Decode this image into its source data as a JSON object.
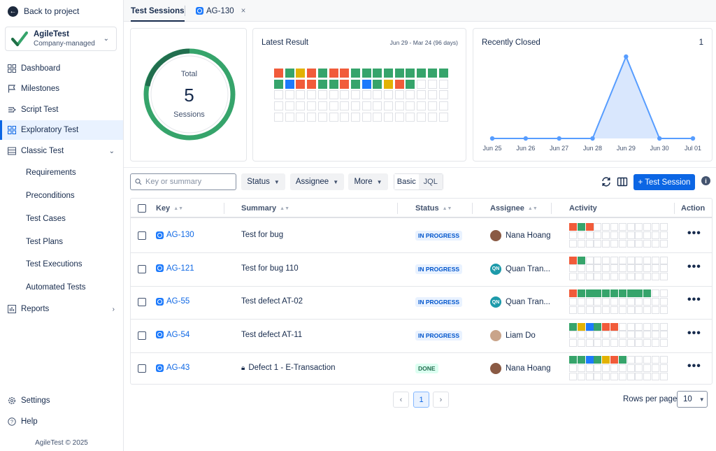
{
  "sidebar": {
    "back_label": "Back to project",
    "project": {
      "name": "AgileTest",
      "type": "Company-managed"
    },
    "items": [
      {
        "label": "Dashboard",
        "icon": "dashboard-icon"
      },
      {
        "label": "Milestones",
        "icon": "flag-icon"
      },
      {
        "label": "Script Test",
        "icon": "script-icon"
      },
      {
        "label": "Exploratory Test",
        "icon": "grid-icon",
        "active": true
      },
      {
        "label": "Classic Test",
        "icon": "list-icon",
        "expanded": true
      }
    ],
    "sub_items": [
      "Requirements",
      "Preconditions",
      "Test Cases",
      "Test Plans",
      "Test Executions",
      "Automated Tests"
    ],
    "reports_label": "Reports",
    "settings_label": "Settings",
    "help_label": "Help",
    "footer": "AgileTest © 2025"
  },
  "tabs": [
    {
      "label": "Test Sessions",
      "active": true
    },
    {
      "label": "AG-130",
      "closable": true
    }
  ],
  "total_card": {
    "label": "Total",
    "value": "5",
    "unit": "Sessions"
  },
  "latest_result": {
    "title": "Latest Result",
    "range": "Jun 29  -  Mar 24  (96 days)",
    "rows": [
      [
        "red",
        "green",
        "yellow",
        "red",
        "green",
        "red",
        "red",
        "green",
        "green",
        "green",
        "green",
        "green",
        "green",
        "green",
        "green",
        "green"
      ],
      [
        "green",
        "blue",
        "red",
        "red",
        "green",
        "green",
        "red",
        "green",
        "blue",
        "green",
        "yellow",
        "red",
        "green"
      ]
    ]
  },
  "recently_closed": {
    "title": "Recently Closed",
    "count": "1"
  },
  "chart_data": {
    "type": "area",
    "categories": [
      "Jun 25",
      "Jun 26",
      "Jun 27",
      "Jun 28",
      "Jun 29",
      "Jun 30",
      "Jul 01"
    ],
    "values": [
      0,
      0,
      0,
      0,
      1,
      0,
      0
    ],
    "ylim": [
      0,
      1
    ],
    "grid": false,
    "color": "#579dff"
  },
  "toolbar": {
    "search_placeholder": "Key or summary",
    "status_label": "Status",
    "assignee_label": "Assignee",
    "more_label": "More",
    "basic_label": "Basic",
    "jql_label": "JQL",
    "new_button": "+ Test Session"
  },
  "table": {
    "columns": [
      "Key",
      "Summary",
      "Status",
      "Assignee",
      "Activity",
      "Action"
    ],
    "rows": [
      {
        "key": "AG-130",
        "summary": "Test for bug",
        "status": "IN PROGRESS",
        "assignee": "Nana Hoang",
        "avatar": "photo",
        "locked": false,
        "activity": [
          "red",
          "green",
          "red"
        ]
      },
      {
        "key": "AG-121",
        "summary": "Test for bug 110",
        "status": "IN PROGRESS",
        "assignee": "Quan Tran...",
        "avatar": "QN",
        "locked": false,
        "activity": [
          "red",
          "green"
        ]
      },
      {
        "key": "AG-55",
        "summary": "Test defect AT-02",
        "status": "IN PROGRESS",
        "assignee": "Quan Tran...",
        "avatar": "QN",
        "locked": false,
        "activity": [
          "red",
          "green",
          "green",
          "green",
          "green",
          "green",
          "green",
          "green",
          "green",
          "green"
        ]
      },
      {
        "key": "AG-54",
        "summary": "Test defect AT-11",
        "status": "IN PROGRESS",
        "assignee": "Liam Do",
        "avatar": "photo2",
        "locked": false,
        "activity": [
          "green",
          "yellow",
          "blue",
          "green",
          "red",
          "red"
        ]
      },
      {
        "key": "AG-43",
        "summary": "Defect 1 - E-Transaction",
        "status": "DONE",
        "assignee": "Nana Hoang",
        "avatar": "photo",
        "locked": true,
        "activity": [
          "green",
          "green",
          "blue",
          "green",
          "yellow",
          "red",
          "green"
        ]
      }
    ]
  },
  "pagination": {
    "current": "1",
    "rows_per_page_label": "Rows per page",
    "rows_per_page": "10"
  },
  "colors": {
    "green": "#36a46b",
    "red": "#f15b3a",
    "yellow": "#e2b203",
    "blue": "#1d7afc",
    "accent": "#0c66e4"
  }
}
